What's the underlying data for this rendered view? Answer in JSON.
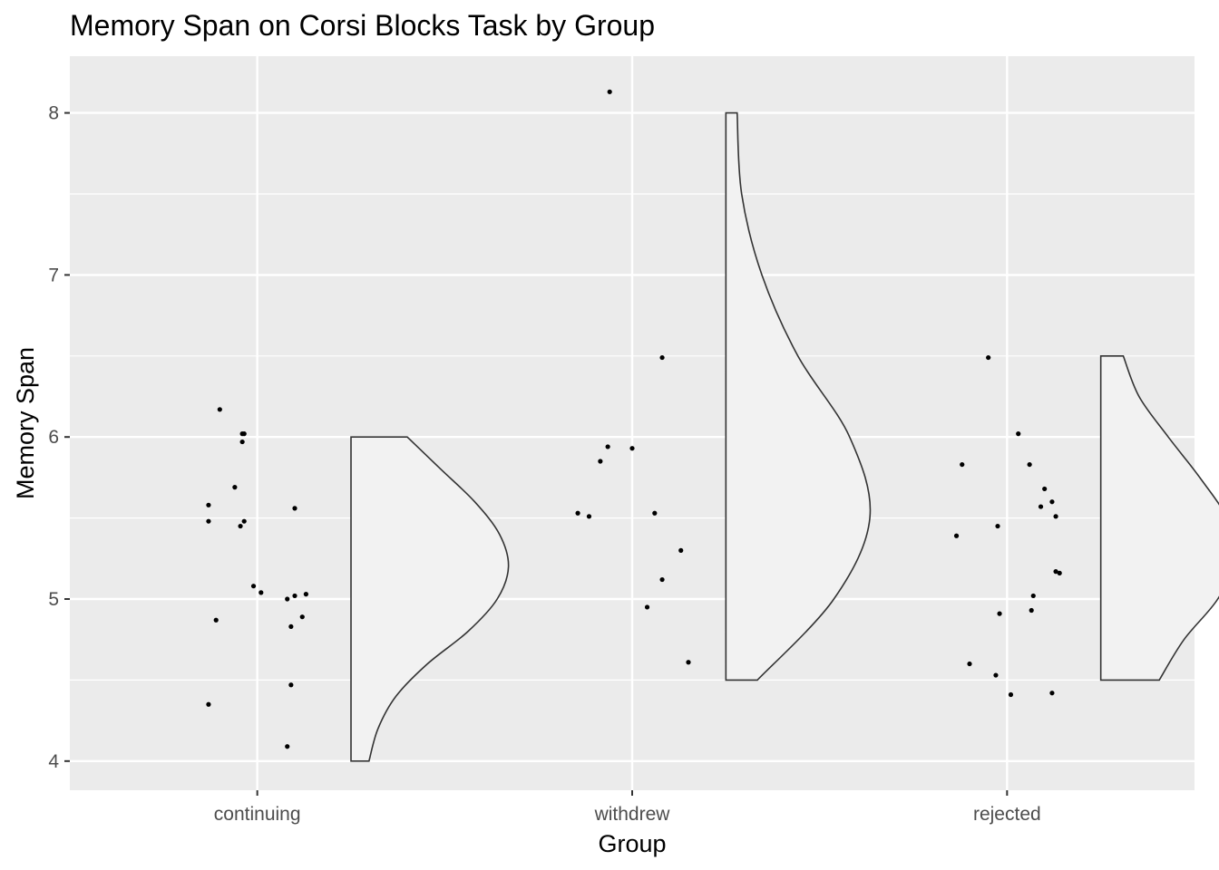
{
  "chart_data": {
    "type": "raincloud",
    "title": "Memory Span on Corsi Blocks Task by Group",
    "xlabel": "Group",
    "ylabel": "Memory Span",
    "categories": [
      "continuing",
      "withdrew",
      "rejected"
    ],
    "ylim": [
      3.82,
      8.35
    ],
    "y_ticks": [
      4,
      5,
      6,
      7,
      8
    ],
    "grid": true,
    "panel_color": "#ebebeb",
    "violin_fill": "#f2f2f2",
    "violin_stroke": "#333333",
    "series": [
      {
        "group": "continuing",
        "points": [
          {
            "dx": -0.13,
            "y": 5.58
          },
          {
            "dx": -0.13,
            "y": 5.48
          },
          {
            "dx": -0.1,
            "y": 6.17
          },
          {
            "dx": -0.06,
            "y": 5.69
          },
          {
            "dx": -0.04,
            "y": 6.02
          },
          {
            "dx": -0.035,
            "y": 6.02
          },
          {
            "dx": -0.04,
            "y": 5.97
          },
          {
            "dx": -0.045,
            "y": 5.45
          },
          {
            "dx": -0.035,
            "y": 5.48
          },
          {
            "dx": 0.1,
            "y": 5.56
          },
          {
            "dx": -0.11,
            "y": 4.87
          },
          {
            "dx": -0.01,
            "y": 5.08
          },
          {
            "dx": 0.01,
            "y": 5.04
          },
          {
            "dx": 0.08,
            "y": 5.0
          },
          {
            "dx": 0.1,
            "y": 5.02
          },
          {
            "dx": 0.13,
            "y": 5.03
          },
          {
            "dx": 0.12,
            "y": 4.89
          },
          {
            "dx": 0.09,
            "y": 4.83
          },
          {
            "dx": 0.09,
            "y": 4.47
          },
          {
            "dx": -0.13,
            "y": 4.35
          },
          {
            "dx": 0.08,
            "y": 4.09
          }
        ],
        "violin": [
          [
            4.0,
            0.08
          ],
          [
            4.2,
            0.12
          ],
          [
            4.4,
            0.2
          ],
          [
            4.6,
            0.34
          ],
          [
            4.8,
            0.52
          ],
          [
            5.0,
            0.65
          ],
          [
            5.2,
            0.7
          ],
          [
            5.4,
            0.66
          ],
          [
            5.6,
            0.55
          ],
          [
            5.8,
            0.4
          ],
          [
            6.0,
            0.25
          ]
        ]
      },
      {
        "group": "withdrew",
        "points": [
          {
            "dx": -0.06,
            "y": 8.13
          },
          {
            "dx": 0.08,
            "y": 6.49
          },
          {
            "dx": -0.065,
            "y": 5.94
          },
          {
            "dx": 0.0,
            "y": 5.93
          },
          {
            "dx": -0.085,
            "y": 5.85
          },
          {
            "dx": -0.145,
            "y": 5.53
          },
          {
            "dx": -0.115,
            "y": 5.51
          },
          {
            "dx": 0.06,
            "y": 5.53
          },
          {
            "dx": 0.13,
            "y": 5.3
          },
          {
            "dx": 0.08,
            "y": 5.12
          },
          {
            "dx": 0.04,
            "y": 4.95
          },
          {
            "dx": 0.15,
            "y": 4.61
          }
        ],
        "violin": [
          [
            4.5,
            0.14
          ],
          [
            5.0,
            0.48
          ],
          [
            5.5,
            0.64
          ],
          [
            6.0,
            0.55
          ],
          [
            6.5,
            0.32
          ],
          [
            7.0,
            0.16
          ],
          [
            7.5,
            0.07
          ],
          [
            8.0,
            0.05
          ]
        ]
      },
      {
        "group": "rejected",
        "points": [
          {
            "dx": -0.05,
            "y": 6.49
          },
          {
            "dx": 0.03,
            "y": 6.02
          },
          {
            "dx": -0.12,
            "y": 5.83
          },
          {
            "dx": 0.06,
            "y": 5.83
          },
          {
            "dx": 0.1,
            "y": 5.68
          },
          {
            "dx": 0.12,
            "y": 5.6
          },
          {
            "dx": 0.09,
            "y": 5.57
          },
          {
            "dx": 0.13,
            "y": 5.51
          },
          {
            "dx": -0.025,
            "y": 5.45
          },
          {
            "dx": -0.135,
            "y": 5.39
          },
          {
            "dx": 0.14,
            "y": 5.16
          },
          {
            "dx": 0.13,
            "y": 5.17
          },
          {
            "dx": 0.07,
            "y": 5.02
          },
          {
            "dx": 0.065,
            "y": 4.93
          },
          {
            "dx": -0.02,
            "y": 4.91
          },
          {
            "dx": -0.1,
            "y": 4.6
          },
          {
            "dx": -0.03,
            "y": 4.53
          },
          {
            "dx": 0.01,
            "y": 4.41
          },
          {
            "dx": 0.12,
            "y": 4.42
          }
        ],
        "violin": [
          [
            4.5,
            0.26
          ],
          [
            4.75,
            0.37
          ],
          [
            5.0,
            0.52
          ],
          [
            5.25,
            0.6
          ],
          [
            5.5,
            0.56
          ],
          [
            5.75,
            0.44
          ],
          [
            6.0,
            0.3
          ],
          [
            6.25,
            0.17
          ],
          [
            6.5,
            0.1
          ]
        ]
      }
    ]
  }
}
